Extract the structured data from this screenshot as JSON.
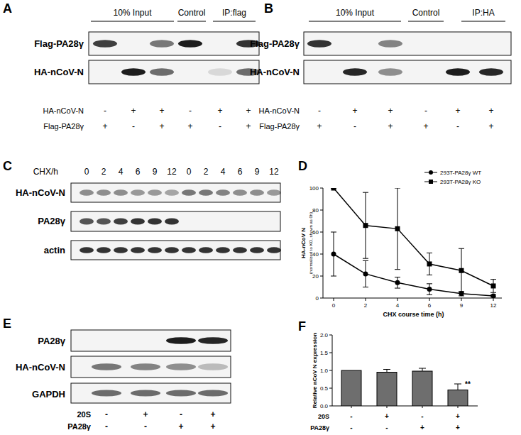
{
  "panels": {
    "A": {
      "letter": "A",
      "headers": [
        "10% Input",
        "Control",
        "IP:flag"
      ],
      "rows": [
        "Flag-PA28γ",
        "HA-nCoV-N"
      ],
      "conditions": [
        {
          "label": "HA-nCoV-N",
          "signs": [
            "-",
            "+",
            "+",
            "-",
            "+",
            "+"
          ]
        },
        {
          "label": "Flag-PA28γ",
          "signs": [
            "+",
            "-",
            "+",
            "+",
            "-",
            "+"
          ]
        }
      ]
    },
    "B": {
      "letter": "B",
      "headers": [
        "10% Input",
        "Control",
        "IP:HA"
      ],
      "rows": [
        "Flag-PA28γ",
        "HA-nCoV-N"
      ],
      "conditions": [
        {
          "label": "HA-nCoV-N",
          "signs": [
            "-",
            "+",
            "+",
            "-",
            "+",
            "+"
          ]
        },
        {
          "label": "Flag-PA28γ",
          "signs": [
            "+",
            "-",
            "+",
            "+",
            "-",
            "+"
          ]
        }
      ]
    },
    "C": {
      "letter": "C",
      "time_label": "CHX/h",
      "times": [
        "0",
        "2",
        "4",
        "6",
        "9",
        "12",
        "0",
        "2",
        "4",
        "6",
        "9",
        "12"
      ],
      "rows": [
        "HA-nCoV-N",
        "PA28γ",
        "actin"
      ]
    },
    "E": {
      "letter": "E",
      "rows": [
        "PA28γ",
        "HA-nCoV-N",
        "GAPDH"
      ],
      "conditions": [
        {
          "label": "20S",
          "signs": [
            "-",
            "+",
            "-",
            "+"
          ]
        },
        {
          "label": "PA28γ",
          "signs": [
            "-",
            "-",
            "+",
            "+"
          ]
        }
      ]
    }
  },
  "chart_data": [
    {
      "letter": "D",
      "type": "line",
      "y_label": "HA-nCoV N",
      "y_sublabel": "(normalized to KO, shown as 0h)",
      "x_label": "CHX course time (h)",
      "categories": [
        "0",
        "2",
        "4",
        "6",
        "9",
        "12"
      ],
      "series": [
        {
          "name": "293T-PA28γ WT",
          "color": "#000000",
          "marker": "circle",
          "values": [
            40,
            22,
            14,
            8,
            4,
            2
          ],
          "errors": [
            20,
            12,
            5,
            5,
            2,
            1
          ]
        },
        {
          "name": "293T-PA28γ KO",
          "color": "#000000",
          "marker": "square",
          "values": [
            100,
            66,
            63,
            31,
            25,
            11
          ],
          "errors": [
            0,
            30,
            37,
            10,
            20,
            6
          ]
        }
      ],
      "ylim": [
        0,
        100
      ],
      "yticks": [
        0,
        20,
        40,
        60,
        80,
        100
      ],
      "legend": "top-right"
    },
    {
      "letter": "F",
      "type": "bar",
      "y_label": "Relative nCoV N expression",
      "categories": [
        null,
        null,
        null,
        null
      ],
      "values": [
        1.0,
        0.95,
        0.98,
        0.45
      ],
      "errors": [
        0,
        0.08,
        0.08,
        0.17
      ],
      "significance": [
        null,
        null,
        null,
        "**"
      ],
      "color": "#6e6e6e",
      "ylim": [
        0,
        2
      ],
      "yticks": [
        {
          "value": 0,
          "label": "0.0"
        },
        {
          "value": 0.5,
          "label": "0.5"
        },
        {
          "value": 1,
          "label": "1.0"
        },
        {
          "value": 1.5,
          "label": "1.5"
        },
        {
          "value": 2,
          "label": "2.0"
        }
      ],
      "conditions": [
        {
          "label": "20S",
          "signs": [
            "-",
            "+",
            "-",
            "+"
          ]
        },
        {
          "label": "PA28γ",
          "signs": [
            "-",
            "-",
            "+",
            "+"
          ]
        }
      ]
    }
  ]
}
